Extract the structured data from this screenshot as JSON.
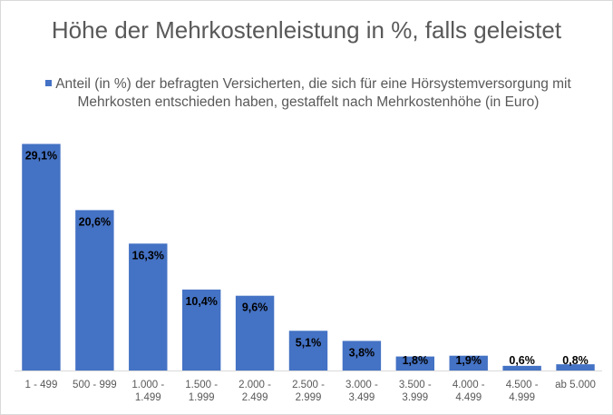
{
  "chart_data": {
    "type": "bar",
    "title": "Höhe der Mehrkostenleistung in %, falls geleistet",
    "series": [
      {
        "name": "Anteil (in %) der befragten Versicherten, die sich für eine Hörsystemversorgung mit Mehrkosten entschieden haben, gestaffelt nach Mehrkostenhöhe (in Euro)",
        "values": [
          29.1,
          20.6,
          16.3,
          10.4,
          9.6,
          5.1,
          3.8,
          1.8,
          1.9,
          0.6,
          0.8
        ]
      }
    ],
    "categories": [
      [
        "1 - 499"
      ],
      [
        "500 - 999"
      ],
      [
        "1.000 -",
        "1.499"
      ],
      [
        "1.500 -",
        "1.999"
      ],
      [
        "2.000 -",
        "2.499"
      ],
      [
        "2.500 -",
        "2.999"
      ],
      [
        "3.000 -",
        "3.499"
      ],
      [
        "3.500 -",
        "3.999"
      ],
      [
        "4.000 -",
        "4.499"
      ],
      [
        "4.500 -",
        "4.999"
      ],
      [
        "ab 5.000"
      ]
    ],
    "data_labels": [
      "29,1%",
      "20,6%",
      "16,3%",
      "10,4%",
      "9,6%",
      "5,1%",
      "3,8%",
      "1,8%",
      "1,9%",
      "0,6%",
      "0,8%"
    ],
    "xlabel": "",
    "ylabel": "",
    "ylim": [
      0,
      30
    ],
    "grid": false,
    "legend_position": "top",
    "bar_color": "#4472c4"
  }
}
